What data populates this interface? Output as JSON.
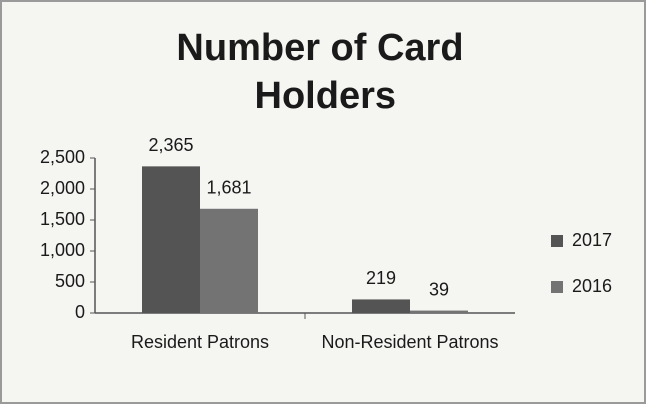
{
  "chart_data": {
    "type": "bar",
    "title": "Number of Card Holders",
    "categories": [
      "Resident Patrons",
      "Non-Resident Patrons"
    ],
    "series": [
      {
        "name": "2017",
        "color": "#545454",
        "values": [
          2365,
          219
        ],
        "value_labels": [
          "2,365",
          "219"
        ]
      },
      {
        "name": "2016",
        "color": "#737373",
        "values": [
          1681,
          39
        ],
        "value_labels": [
          "1,681",
          "39"
        ]
      }
    ],
    "ylim": [
      0,
      2500
    ],
    "yticks": [
      0,
      {
        "value": 500,
        "label": "500"
      },
      {
        "value": 1000,
        "label": "1,000"
      },
      {
        "value": 1500,
        "label": "1,500"
      },
      {
        "value": 2000,
        "label": "2,000"
      },
      {
        "value": 2500,
        "label": "2,500"
      }
    ],
    "grid": false,
    "legend": "right"
  }
}
